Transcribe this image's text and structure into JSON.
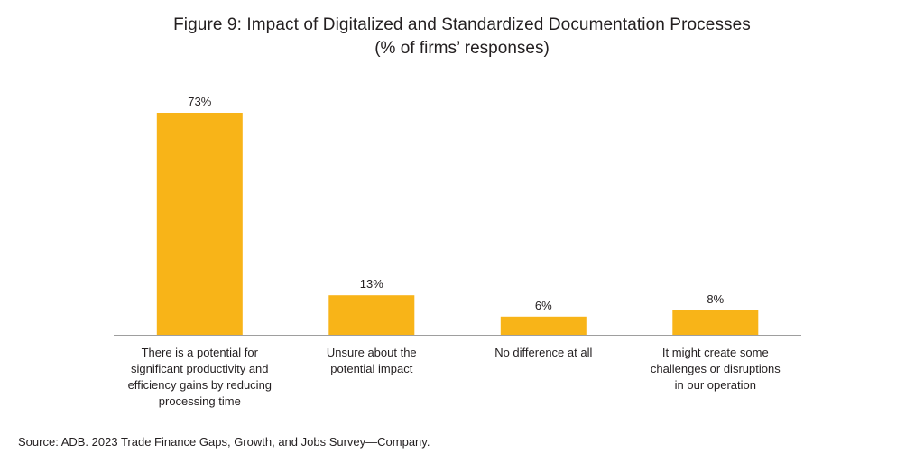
{
  "figure": {
    "title": "Figure 9: Impact of Digitalized and Standardized Documentation Processes",
    "subtitle": "(% of firms’ responses)",
    "source": "Source: ADB. 2023 Trade Finance Gaps, Growth, and Jobs Survey—Company."
  },
  "chart_data": {
    "type": "bar",
    "title": "Figure 9: Impact of Digitalized and Standardized Documentation Processes",
    "subtitle": "(% of firms’ responses)",
    "categories": [
      [
        "There is a potential for",
        "significant productivity and",
        "efficiency gains by reducing",
        "processing time"
      ],
      [
        "Unsure about the",
        "potential impact"
      ],
      [
        "No difference at all"
      ],
      [
        "It might create some",
        "challenges or disruptions",
        "in our operation"
      ]
    ],
    "values": [
      73,
      13,
      6,
      8
    ],
    "data_labels": [
      "73%",
      "13%",
      "6%",
      "8%"
    ],
    "unit": "%",
    "ylim": [
      0,
      80
    ],
    "grid": false,
    "legend": "none",
    "bar_color": "#F8B418",
    "axis_color": "#9e9e9e"
  }
}
